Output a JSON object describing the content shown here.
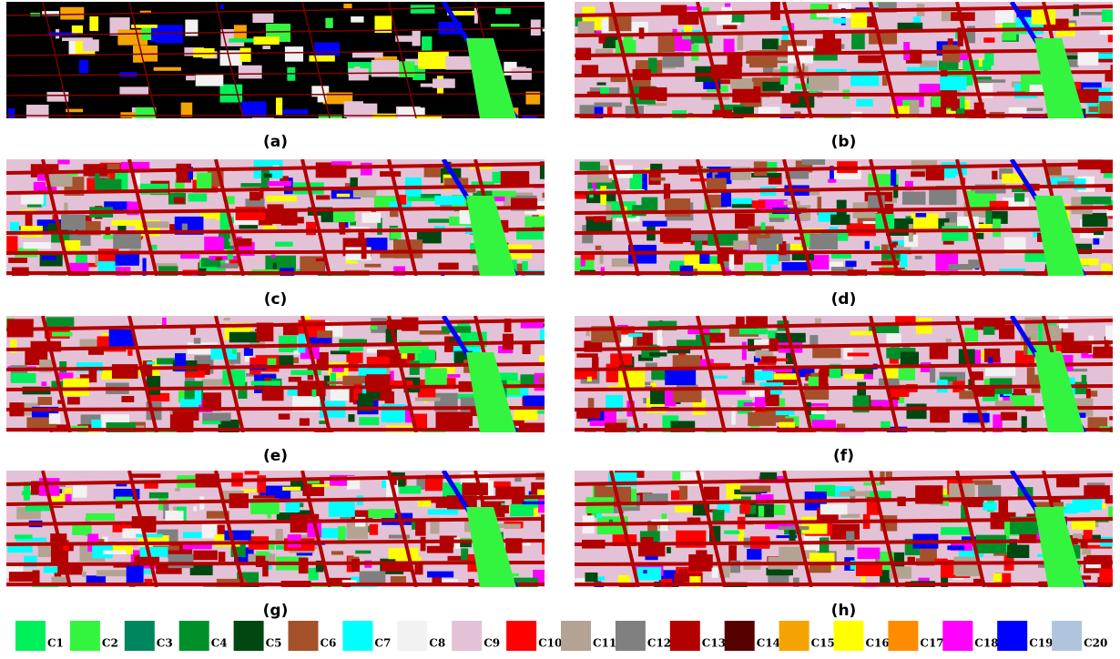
{
  "panels": [
    {
      "label": "(a)"
    },
    {
      "label": "(b)"
    },
    {
      "label": "(c)"
    },
    {
      "label": "(d)"
    },
    {
      "label": "(e)"
    },
    {
      "label": "(f)"
    },
    {
      "label": "(g)"
    },
    {
      "label": "(h)"
    }
  ],
  "legend": [
    {
      "label": "C1",
      "color": "#00f05a"
    },
    {
      "label": "C2",
      "color": "#33f540"
    },
    {
      "label": "C3",
      "color": "#00865f"
    },
    {
      "label": "C4",
      "color": "#00902a"
    },
    {
      "label": "C5",
      "color": "#004712"
    },
    {
      "label": "C6",
      "color": "#a5512c"
    },
    {
      "label": "C7",
      "color": "#00ffff"
    },
    {
      "label": "C8",
      "color": "#f2f2f2"
    },
    {
      "label": "C9",
      "color": "#e3c2d7"
    },
    {
      "label": "C10",
      "color": "#ff0000"
    },
    {
      "label": "C11",
      "color": "#b4a392"
    },
    {
      "label": "C12",
      "color": "#808080"
    },
    {
      "label": "C13",
      "color": "#b30000"
    },
    {
      "label": "C14",
      "color": "#560000"
    },
    {
      "label": "C15",
      "color": "#f5a300"
    },
    {
      "label": "C16",
      "color": "#ffff00"
    },
    {
      "label": "C17",
      "color": "#ff8c00"
    },
    {
      "label": "C18",
      "color": "#ff00ff"
    },
    {
      "label": "C19",
      "color": "#0000ff"
    },
    {
      "label": "C20",
      "color": "#b0c4de"
    }
  ]
}
